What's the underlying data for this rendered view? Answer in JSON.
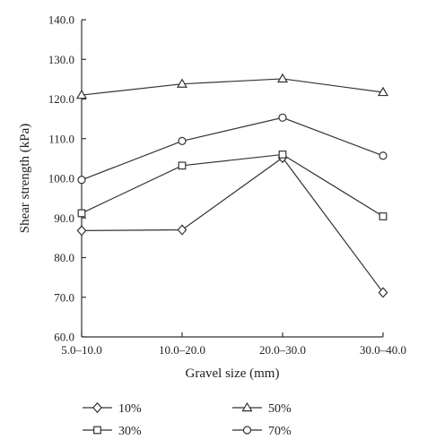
{
  "chart_data": {
    "type": "line",
    "title": "",
    "xlabel": "Gravel size (mm)",
    "ylabel": "Shear strength (kPa)",
    "categories": [
      "5.0–10.0",
      "10.0–20.0",
      "20.0–30.0",
      "30.0–40.0"
    ],
    "ylim": [
      60.0,
      140.0
    ],
    "yticks": [
      "60.0",
      "70.0",
      "80.0",
      "90.0",
      "100.0",
      "110.0",
      "120.0",
      "130.0",
      "140.0"
    ],
    "grid": false,
    "legend_position": "bottom",
    "series": [
      {
        "name": "10%",
        "marker": "diamond",
        "values": [
          86.8,
          87.0,
          105.2,
          71.2
        ]
      },
      {
        "name": "30%",
        "marker": "square",
        "values": [
          91.2,
          103.2,
          106.0,
          90.4
        ]
      },
      {
        "name": "50%",
        "marker": "triangle",
        "values": [
          121.0,
          123.8,
          125.1,
          121.7
        ]
      },
      {
        "name": "70%",
        "marker": "circle",
        "values": [
          99.6,
          109.4,
          115.3,
          105.7
        ]
      }
    ]
  }
}
